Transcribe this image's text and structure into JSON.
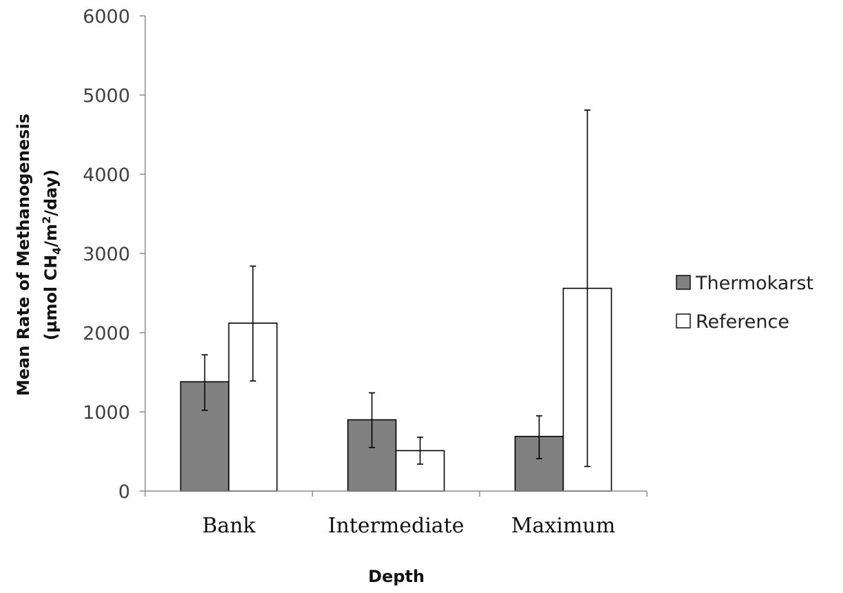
{
  "chart_data": {
    "type": "bar",
    "categories": [
      "Bank",
      "Intermediate",
      "Maximum"
    ],
    "series": [
      {
        "name": "Thermokarst",
        "values": [
          1380,
          900,
          690
        ],
        "error_low": [
          1020,
          550,
          410
        ],
        "error_high": [
          1720,
          1240,
          950
        ],
        "color": "#808080"
      },
      {
        "name": "Reference",
        "values": [
          2120,
          510,
          2560
        ],
        "error_low": [
          1390,
          340,
          310
        ],
        "error_high": [
          2840,
          680,
          4810
        ],
        "color": "#ffffff"
      }
    ],
    "yticks": [
      "0",
      "1000",
      "2000",
      "3000",
      "4000",
      "5000",
      "6000"
    ],
    "ylim": [
      0,
      6000
    ],
    "xlabel": "Depth",
    "ylabel_line1": "Mean Rate of Methanogenesis",
    "ylabel_line2_prefix": "(µmol CH",
    "ylabel_line2_sub": "4",
    "ylabel_line2_mid": "/m",
    "ylabel_line2_sup": "2",
    "ylabel_line2_suffix": "/day)",
    "grid": false,
    "legend": "right"
  },
  "colors": {
    "bar_border": "#000000",
    "axis": "#8c8c8c",
    "error_bar": "#000000"
  }
}
